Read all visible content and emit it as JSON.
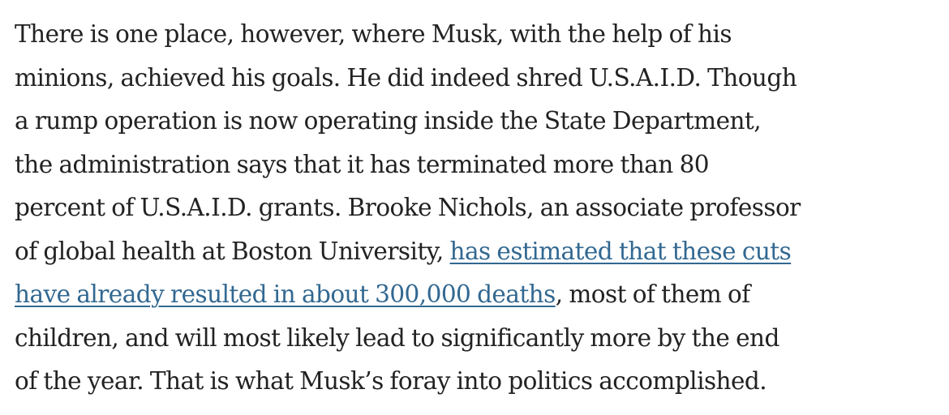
{
  "article": {
    "lines": [
      "There is one place, however, where Musk, with the help of his",
      "minions, achieved his goals. He did indeed shred U.S.A.I.D. Though",
      "a rump operation is now operating inside the State Department,",
      "the administration says that it has terminated more than 80",
      "percent of U.S.A.I.D. grants. Brooke Nichols, an associate professor"
    ],
    "line6_prefix": "of global health at Boston University, ",
    "link_part1": "has estimated that these cuts",
    "link_part2": "have already resulted in about 300,000 deaths",
    "line7_suffix": ", most of them of",
    "lines_after": [
      "children, and will most likely lead to significantly more by the end",
      "of the year. That is what Musk’s foray into politics accomplished."
    ],
    "link_color": "#326891",
    "text_color": "#222222"
  }
}
